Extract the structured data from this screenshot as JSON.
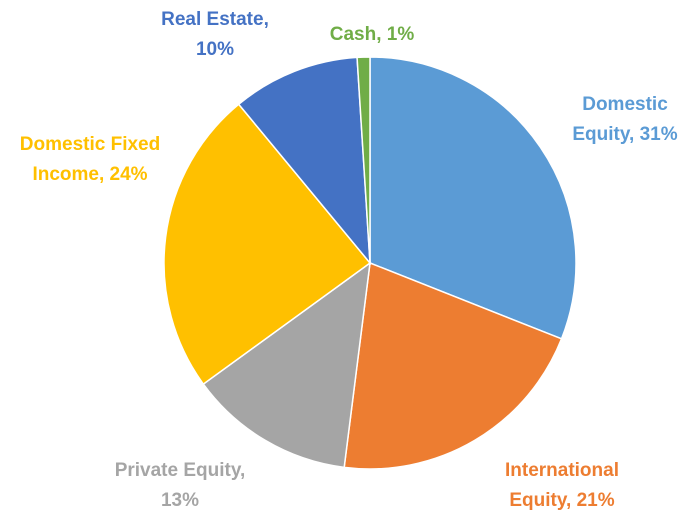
{
  "chart_data": {
    "type": "pie",
    "values": [
      31,
      21,
      13,
      24,
      10,
      1
    ],
    "value_labels": [
      [
        "Domestic",
        "Equity, 31%"
      ],
      [
        "International",
        "Equity, 21%"
      ],
      [
        "Private Equity,",
        "13%"
      ],
      [
        "Domestic Fixed",
        "Income, 24%"
      ],
      [
        "Real Estate,",
        "10%"
      ],
      [
        "Cash, 1%"
      ]
    ],
    "colors": [
      "#5B9BD5",
      "#ED7D31",
      "#A5A5A5",
      "#FFC000",
      "#4472C4",
      "#70AD47"
    ]
  }
}
